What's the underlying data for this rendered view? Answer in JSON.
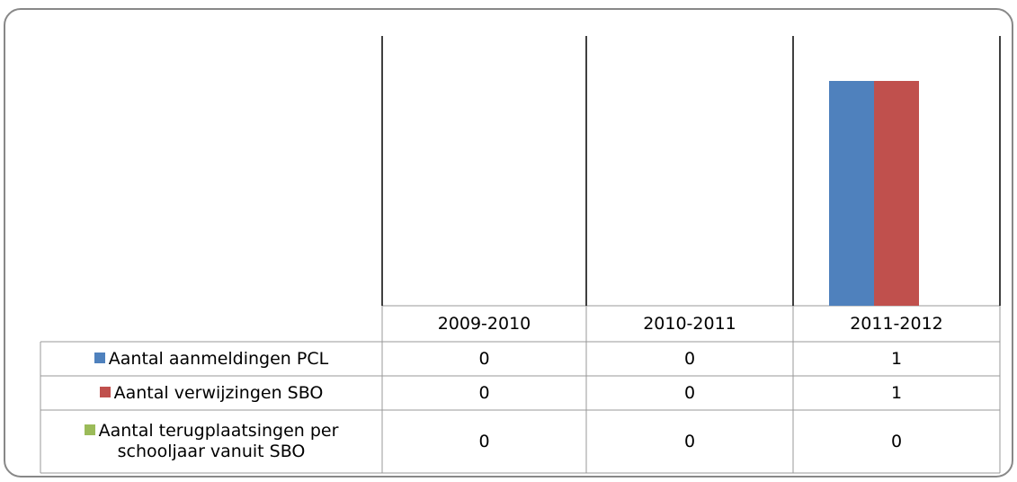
{
  "chart_data": {
    "type": "bar",
    "categories": [
      "2009-2010",
      "2010-2011",
      "2011-2012"
    ],
    "series": [
      {
        "name": "Aantal aanmeldingen PCL",
        "color": "#4f81bd",
        "values": [
          0,
          0,
          1
        ]
      },
      {
        "name": "Aantal verwijzingen SBO",
        "color": "#c0504d",
        "values": [
          0,
          0,
          1
        ]
      },
      {
        "name": "Aantal terugplaatsingen per schooljaar vanuit SBO",
        "color": "#9bbb59",
        "values": [
          0,
          0,
          0
        ]
      }
    ],
    "ylim": [
      0,
      1.2
    ]
  }
}
